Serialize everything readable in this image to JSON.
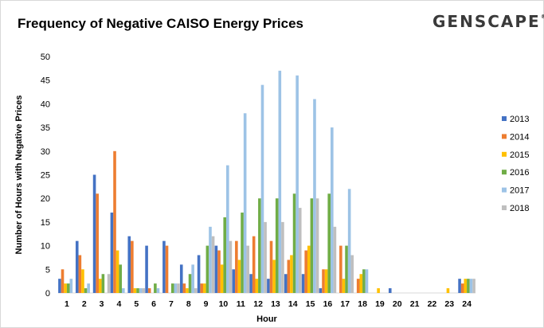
{
  "header": {
    "title": "Frequency of Negative CAISO Energy Prices",
    "logo_text": "GENSCAPE",
    "logo_mark": "®"
  },
  "chart_data": {
    "type": "bar",
    "title": "Frequency of Negative CAISO Energy Prices",
    "xlabel": "Hour",
    "ylabel": "Number of Hours with Negative Prices",
    "ylim": [
      0,
      50
    ],
    "yticks": [
      0,
      5,
      10,
      15,
      20,
      25,
      30,
      35,
      40,
      45,
      50
    ],
    "grid": false,
    "legend_position": "right",
    "categories": [
      "1",
      "2",
      "3",
      "4",
      "5",
      "6",
      "7",
      "8",
      "9",
      "10",
      "11",
      "12",
      "13",
      "14",
      "15",
      "16",
      "17",
      "18",
      "19",
      "20",
      "21",
      "22",
      "23",
      "24"
    ],
    "series": [
      {
        "name": "2013",
        "color": "#4472c4",
        "values": [
          3,
          11,
          25,
          17,
          12,
          10,
          11,
          6,
          8,
          10,
          5,
          4,
          3,
          4,
          4,
          1,
          0,
          0,
          0,
          1,
          0,
          0,
          0,
          3
        ]
      },
      {
        "name": "2014",
        "color": "#ed7d31",
        "values": [
          5,
          8,
          21,
          30,
          11,
          1,
          10,
          2,
          2,
          9,
          11,
          12,
          11,
          7,
          9,
          5,
          10,
          3,
          0,
          0,
          0,
          0,
          0,
          2
        ]
      },
      {
        "name": "2015",
        "color": "#ffc000",
        "values": [
          2,
          5,
          3,
          9,
          1,
          0,
          0,
          1,
          2,
          6,
          7,
          3,
          7,
          8,
          10,
          5,
          3,
          4,
          1,
          0,
          0,
          0,
          1,
          3
        ]
      },
      {
        "name": "2016",
        "color": "#70ad47",
        "values": [
          2,
          1,
          4,
          6,
          1,
          2,
          2,
          4,
          10,
          16,
          17,
          20,
          20,
          21,
          20,
          21,
          10,
          5,
          0,
          0,
          0,
          0,
          0,
          3
        ]
      },
      {
        "name": "2017",
        "color": "#9dc3e6",
        "values": [
          3,
          2,
          0,
          1,
          1,
          1,
          2,
          6,
          14,
          27,
          38,
          44,
          47,
          46,
          41,
          35,
          22,
          5,
          0,
          0,
          0,
          0,
          0,
          3
        ]
      },
      {
        "name": "2018",
        "color": "#bfbfbf",
        "values": [
          0,
          0,
          4,
          0,
          1,
          0,
          2,
          1,
          12,
          11,
          10,
          15,
          15,
          18,
          20,
          14,
          8,
          0,
          0,
          0,
          0,
          0,
          0,
          3
        ]
      }
    ]
  }
}
